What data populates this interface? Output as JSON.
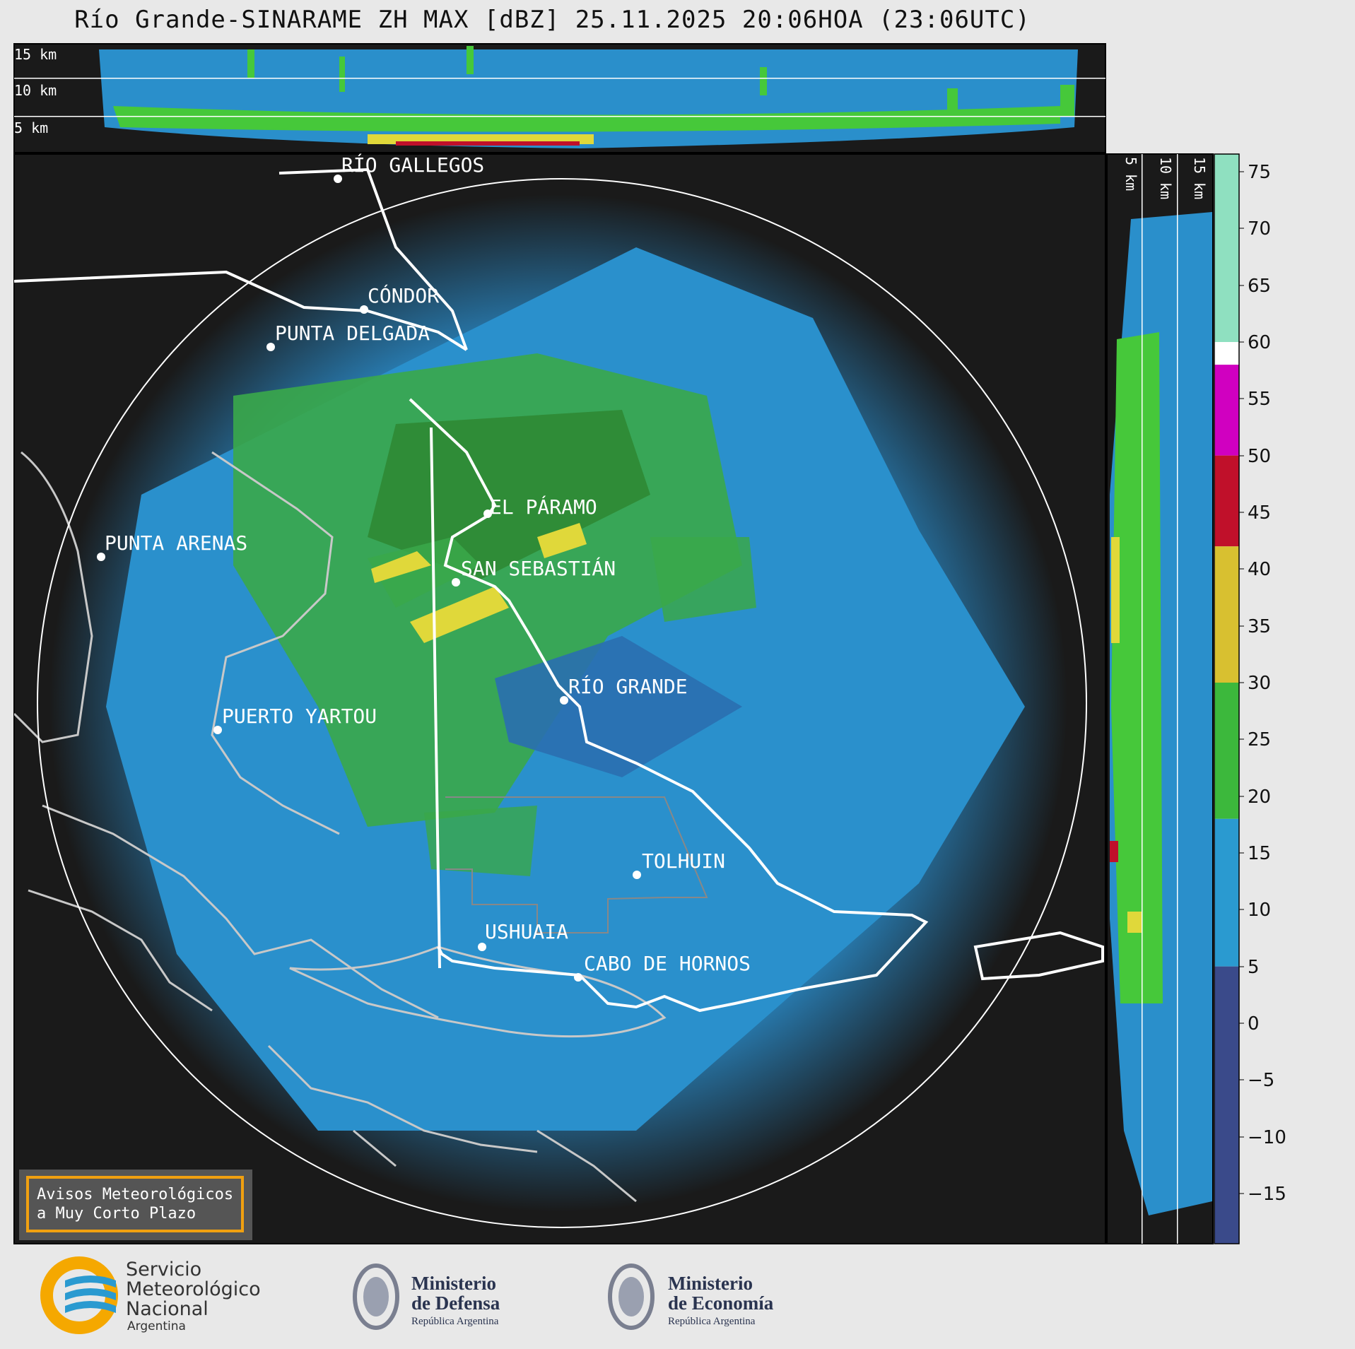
{
  "title": "Río Grande-SINARAME ZH MAX [dBZ] 25.11.2025 20:06HOA (23:06UTC)",
  "top_panel": {
    "labels": [
      "15 km",
      "10 km",
      "5 km"
    ]
  },
  "side_panel": {
    "labels": [
      "5 km",
      "10 km",
      "15 km"
    ]
  },
  "colorbar": {
    "ticks": [
      "75",
      "70",
      "65",
      "60",
      "55",
      "50",
      "45",
      "40",
      "35",
      "30",
      "25",
      "20",
      "15",
      "10",
      "5",
      "0",
      "−5",
      "−10",
      "−15"
    ],
    "bands": [
      {
        "from": 60,
        "to": 77,
        "color": "#8fe0c0"
      },
      {
        "from": 58,
        "to": 60,
        "color": "#ffffff"
      },
      {
        "from": 50,
        "to": 58,
        "color": "#d000c0"
      },
      {
        "from": 42,
        "to": 50,
        "color": "#c0102a"
      },
      {
        "from": 30,
        "to": 42,
        "color": "#d8c030"
      },
      {
        "from": 18,
        "to": 30,
        "color": "#3cb83c"
      },
      {
        "from": 5,
        "to": 18,
        "color": "#2a9ad0"
      },
      {
        "from": -20,
        "to": 5,
        "color": "#3a4a8a"
      }
    ]
  },
  "cities": [
    {
      "name": "RÍO GALLEGOS"
    },
    {
      "name": "CÓNDOR"
    },
    {
      "name": "PUNTA DELGADA"
    },
    {
      "name": "PUNTA ARENAS"
    },
    {
      "name": "EL PÁRAMO"
    },
    {
      "name": "SAN SEBASTIÁN"
    },
    {
      "name": "RÍO GRANDE"
    },
    {
      "name": "PUERTO YARTOU"
    },
    {
      "name": "TOLHUIN"
    },
    {
      "name": "USHUAIA"
    },
    {
      "name": "CABO DE HORNOS"
    }
  ],
  "notice": {
    "line1": "Avisos Meteorológicos",
    "line2": "a Muy Corto Plazo"
  },
  "logos": {
    "smn": {
      "line1": "Servicio",
      "line2": "Meteorológico",
      "line3": "Nacional",
      "line4": "Argentina"
    },
    "defensa": {
      "line1": "Ministerio",
      "line2": "de Defensa",
      "line3": "República Argentina"
    },
    "economia": {
      "line1": "Ministerio",
      "line2": "de Economía",
      "line3": "República Argentina"
    }
  },
  "colors": {
    "background": "#1a1a1a",
    "page": "#e8e8e8",
    "notice_border": "#f0a010",
    "smn_orange": "#f5a800",
    "smn_blue": "#2a9ad0"
  }
}
